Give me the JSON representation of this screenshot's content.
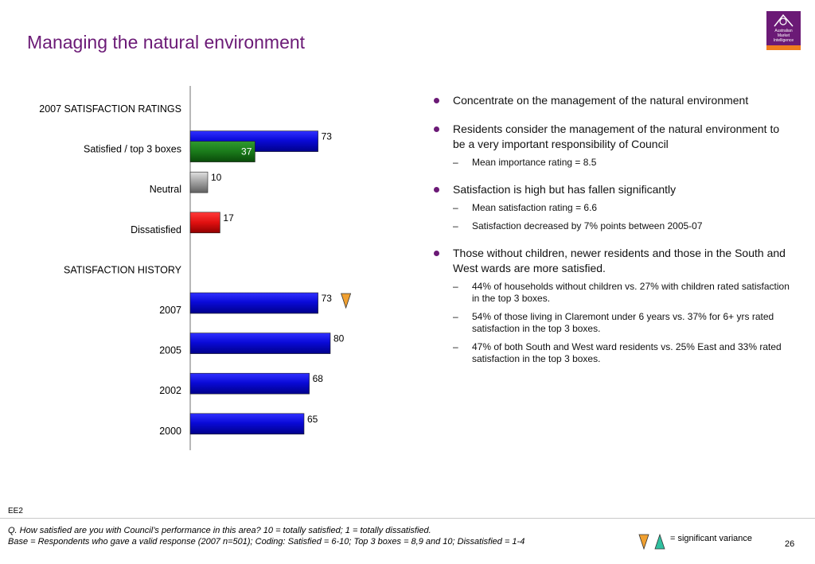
{
  "header": {
    "title": "Managing the natural environment",
    "logo_lines": [
      "Australian",
      "Market",
      "Intelligence"
    ]
  },
  "colors": {
    "title": "#6b1a76",
    "bar_blue": "#1010e0",
    "bar_green": "#1a7a1a",
    "bar_grey": "#9a9a9a",
    "bar_red": "#e01010",
    "triangle_down": "#f0a030",
    "triangle_up": "#30c0a0"
  },
  "chart_data": {
    "type": "bar",
    "orientation": "horizontal",
    "xlim": [
      0,
      100
    ],
    "rows": [
      {
        "label": "2007 SATISFACTION RATINGS",
        "heading": true
      },
      {
        "label": "Satisfied / top 3 boxes",
        "series": [
          {
            "value": 73,
            "color": "blue"
          },
          {
            "value": 37,
            "color": "green"
          }
        ]
      },
      {
        "label": "Neutral",
        "series": [
          {
            "value": 10,
            "color": "grey"
          }
        ]
      },
      {
        "label": "Dissatisfied",
        "series": [
          {
            "value": 17,
            "color": "red"
          }
        ]
      },
      {
        "label": "SATISFACTION HISTORY",
        "heading": true
      },
      {
        "label": "2007",
        "series": [
          {
            "value": 73,
            "color": "blue"
          }
        ],
        "marker": "down"
      },
      {
        "label": "2005",
        "series": [
          {
            "value": 80,
            "color": "blue"
          }
        ]
      },
      {
        "label": "2002",
        "series": [
          {
            "value": 68,
            "color": "blue"
          }
        ]
      },
      {
        "label": "2000",
        "series": [
          {
            "value": 65,
            "color": "blue"
          }
        ]
      }
    ]
  },
  "bullets": [
    {
      "text": "Concentrate on the management of the natural environment",
      "subs": []
    },
    {
      "text": "Residents consider the management of the natural environment to be a very important responsibility of Council",
      "subs": [
        "Mean importance rating = 8.5"
      ]
    },
    {
      "text": "Satisfaction is high but has fallen significantly",
      "subs": [
        "Mean satisfaction rating = 6.6",
        "Satisfaction decreased by 7% points between 2005-07"
      ]
    },
    {
      "text": "Those without children, newer residents and those in the South and West wards are more satisfied.",
      "subs": [
        "44% of households without children vs. 27% with children rated satisfaction in the top 3 boxes.",
        "54% of those living in Claremont under 6 years vs. 37% for 6+ yrs rated satisfaction in the top 3 boxes.",
        "47% of both South and West ward residents vs. 25% East and 33% rated satisfaction in the top 3 boxes."
      ]
    }
  ],
  "footer": {
    "id": "EE2",
    "question": "Q. How satisfied are you with Council’s performance in this area? 10 = totally satisfied; 1 = totally dissatisfied.",
    "base": "Base = Respondents who gave a valid response (2007 n=501); Coding: Satisfied = 6-10; Top 3 boxes = 8,9 and 10; Dissatisfied = 1-4",
    "legend": "= significant variance",
    "page": "26"
  }
}
